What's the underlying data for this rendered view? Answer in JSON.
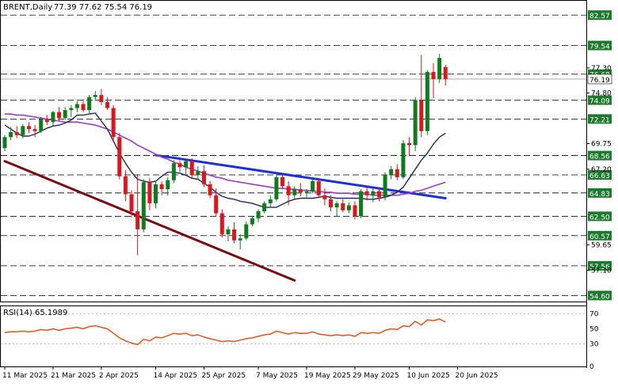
{
  "colors": {
    "up": "#0b7d1c",
    "down": "#e0141b",
    "ma_short": "#1f2a5a",
    "ma_long": "#9a3fc4",
    "trend_blue": "#1f2fd8",
    "trend_red": "#7a0a12",
    "rsi": "#e8531c",
    "grid": "#000000",
    "price_label_bg": "#1c7a2c"
  },
  "header": {
    "instrument": "BRENT,Daily",
    "ohlc": "77.39 77.62 75.54 76.19"
  },
  "price_levels": {
    "dashed_labeled": [
      "82.57",
      "79.54",
      "76.68",
      "74.09",
      "72.21",
      "68.56",
      "66.63",
      "64.83",
      "62.50",
      "60.57",
      "57.56",
      "54.60"
    ],
    "axis_ticks": [
      "77.30",
      "74.80",
      "69.75",
      "67.20",
      "59.65",
      "57.10"
    ],
    "current": "76.19"
  },
  "x_axis": {
    "labels": [
      "11 Mar 2025",
      "21 Mar 2025",
      "2 Apr 2025",
      "14 Apr 2025",
      "25 Apr 2025",
      "7 May 2025",
      "19 May 2025",
      "29 May 2025",
      "10 Jun 2025",
      "20 Jun 2025"
    ]
  },
  "rsi": {
    "label": "RSI(14) 65.1989",
    "ticks": [
      "70",
      "50",
      "30",
      "0"
    ],
    "levels": [
      70,
      30
    ]
  },
  "chart_data": {
    "type": "candlestick",
    "title": "BRENT,Daily",
    "ylim": [
      54.0,
      84.0
    ],
    "candles": [
      [
        69.3,
        70.6,
        69.0,
        70.4
      ],
      [
        70.4,
        71.4,
        70.1,
        70.9
      ],
      [
        70.9,
        71.5,
        70.3,
        70.6
      ],
      [
        70.6,
        71.7,
        70.3,
        71.5
      ],
      [
        71.5,
        71.9,
        70.8,
        71.2
      ],
      [
        71.2,
        71.6,
        70.4,
        71.0
      ],
      [
        71.0,
        72.4,
        70.8,
        72.2
      ],
      [
        72.2,
        72.6,
        71.6,
        71.9
      ],
      [
        71.9,
        73.0,
        71.5,
        72.9
      ],
      [
        72.9,
        73.4,
        72.0,
        72.3
      ],
      [
        72.3,
        73.4,
        72.1,
        73.1
      ],
      [
        73.1,
        73.6,
        72.4,
        73.3
      ],
      [
        73.3,
        74.0,
        72.9,
        73.7
      ],
      [
        73.7,
        74.2,
        72.9,
        73.1
      ],
      [
        73.1,
        74.6,
        72.8,
        74.4
      ],
      [
        74.4,
        75.0,
        74.0,
        74.6
      ],
      [
        74.6,
        75.2,
        73.6,
        73.9
      ],
      [
        73.9,
        74.4,
        73.1,
        73.3
      ],
      [
        73.3,
        73.6,
        70.1,
        70.4
      ],
      [
        70.4,
        70.8,
        66.2,
        66.5
      ],
      [
        66.5,
        67.1,
        64.0,
        64.7
      ],
      [
        64.7,
        65.1,
        62.4,
        63.0
      ],
      [
        63.0,
        66.7,
        58.6,
        61.2
      ],
      [
        61.2,
        66.2,
        60.9,
        65.9
      ],
      [
        65.9,
        66.3,
        63.1,
        63.8
      ],
      [
        63.8,
        66.0,
        63.3,
        65.7
      ],
      [
        65.7,
        66.0,
        64.6,
        65.2
      ],
      [
        65.2,
        66.4,
        64.6,
        66.1
      ],
      [
        66.1,
        68.1,
        65.8,
        67.8
      ],
      [
        67.8,
        68.1,
        66.9,
        67.4
      ],
      [
        67.4,
        68.2,
        66.7,
        68.0
      ],
      [
        68.0,
        68.3,
        66.2,
        66.6
      ],
      [
        66.6,
        67.5,
        66.1,
        67.0
      ],
      [
        67.0,
        67.6,
        65.4,
        65.7
      ],
      [
        65.7,
        66.0,
        64.3,
        64.6
      ],
      [
        64.6,
        65.3,
        62.5,
        62.8
      ],
      [
        62.8,
        63.2,
        60.4,
        60.7
      ],
      [
        60.7,
        61.5,
        60.0,
        61.2
      ],
      [
        61.2,
        61.9,
        59.8,
        60.1
      ],
      [
        60.1,
        60.7,
        59.2,
        60.3
      ],
      [
        60.3,
        62.0,
        60.1,
        61.7
      ],
      [
        61.7,
        62.5,
        61.5,
        62.3
      ],
      [
        62.3,
        63.2,
        61.9,
        63.0
      ],
      [
        63.0,
        64.0,
        62.8,
        63.8
      ],
      [
        63.8,
        64.6,
        63.4,
        64.2
      ],
      [
        64.2,
        66.6,
        64.0,
        66.4
      ],
      [
        66.4,
        66.7,
        65.2,
        65.5
      ],
      [
        65.5,
        66.0,
        63.6,
        64.6
      ],
      [
        64.6,
        65.5,
        64.2,
        65.2
      ],
      [
        65.2,
        65.8,
        64.5,
        64.9
      ],
      [
        64.9,
        65.2,
        64.3,
        65.0
      ],
      [
        65.0,
        66.2,
        64.8,
        66.0
      ],
      [
        66.0,
        66.2,
        64.4,
        64.6
      ],
      [
        64.6,
        65.3,
        63.6,
        64.2
      ],
      [
        64.2,
        64.6,
        63.0,
        63.4
      ],
      [
        63.4,
        64.0,
        62.5,
        63.8
      ],
      [
        63.8,
        64.2,
        62.9,
        63.1
      ],
      [
        63.1,
        63.9,
        62.8,
        63.6
      ],
      [
        63.6,
        64.0,
        62.2,
        62.5
      ],
      [
        62.5,
        65.2,
        62.3,
        65.0
      ],
      [
        65.0,
        65.4,
        64.1,
        64.6
      ],
      [
        64.6,
        65.3,
        63.9,
        65.0
      ],
      [
        65.0,
        65.4,
        64.0,
        64.4
      ],
      [
        64.4,
        66.9,
        64.1,
        66.6
      ],
      [
        66.6,
        67.5,
        66.2,
        67.2
      ],
      [
        67.2,
        67.7,
        66.1,
        66.4
      ],
      [
        66.4,
        70.1,
        66.2,
        69.8
      ],
      [
        69.8,
        70.4,
        68.5,
        69.6
      ],
      [
        69.6,
        74.4,
        69.0,
        74.1
      ],
      [
        74.1,
        78.6,
        70.4,
        71.0
      ],
      [
        71.0,
        77.1,
        70.6,
        76.9
      ],
      [
        76.9,
        77.8,
        74.3,
        76.2
      ],
      [
        76.2,
        78.7,
        75.8,
        78.3
      ],
      [
        77.39,
        77.62,
        75.54,
        76.19
      ]
    ],
    "x_labels": [
      "11 Mar 2025",
      "21 Mar 2025",
      "2 Apr 2025",
      "14 Apr 2025",
      "25 Apr 2025",
      "7 May 2025",
      "19 May 2025",
      "29 May 2025",
      "10 Jun 2025",
      "20 Jun 2025"
    ],
    "ma_short": [
      71.6,
      71.2,
      70.8,
      70.5,
      70.5,
      70.7,
      71.0,
      71.3,
      71.5,
      71.6,
      71.8,
      72.1,
      72.6,
      72.6,
      72.7,
      72.8,
      72.0,
      71.2,
      70.0,
      68.8,
      67.8,
      66.9,
      66.2,
      66.0,
      65.9,
      66.0,
      66.5,
      66.9,
      66.9,
      66.8,
      66.6,
      66.3,
      66.2,
      65.8,
      65.4,
      64.9,
      64.5,
      64.3,
      64.2,
      64.0,
      63.9,
      63.8,
      63.6,
      63.4,
      63.4,
      63.4,
      63.7,
      64.0,
      64.2,
      64.3,
      64.3,
      64.3,
      64.4,
      64.5,
      64.4,
      64.3,
      64.3,
      64.3,
      64.3,
      64.3,
      64.2,
      64.2,
      64.3,
      64.4,
      64.6,
      64.9,
      65.4,
      66.3,
      67.2,
      68.1,
      68.8,
      69.7,
      70.4,
      70.8
    ],
    "ma_long": [
      72.7,
      72.7,
      72.6,
      72.6,
      72.5,
      72.4,
      72.3,
      72.2,
      72.1,
      72.0,
      71.9,
      71.9,
      71.9,
      71.8,
      71.7,
      71.6,
      71.4,
      71.2,
      70.9,
      70.6,
      70.3,
      70.0,
      69.6,
      69.3,
      69.0,
      68.7,
      68.4,
      68.2,
      67.9,
      67.7,
      67.4,
      67.2,
      67.0,
      66.8,
      66.6,
      66.4,
      66.3,
      66.1,
      66.0,
      65.9,
      65.8,
      65.7,
      65.6,
      65.5,
      65.4,
      65.3,
      65.3,
      65.2,
      65.2,
      65.1,
      65.1,
      65.0,
      65.0,
      64.9,
      64.9,
      64.8,
      64.8,
      64.8,
      64.7,
      64.7,
      64.7,
      64.6,
      64.6,
      64.6,
      64.6,
      64.6,
      64.7,
      64.8,
      65.0,
      65.1,
      65.3,
      65.5,
      65.7,
      65.9
    ],
    "trendlines": [
      {
        "color": "trend_blue",
        "from": [
          25,
          68.6
        ],
        "to": [
          73,
          64.3
        ]
      },
      {
        "color": "trend_red",
        "from": [
          0,
          68.0
        ],
        "to": [
          48,
          56.1
        ]
      }
    ],
    "rsi_values": [
      45,
      46,
      46,
      47,
      46,
      47,
      49,
      48,
      50,
      48,
      50,
      51,
      52,
      50,
      53,
      54,
      52,
      50,
      44,
      38,
      34,
      31,
      29,
      36,
      34,
      39,
      38,
      41,
      44,
      43,
      44,
      41,
      42,
      39,
      37,
      35,
      33,
      34,
      33,
      35,
      37,
      38,
      40,
      42,
      43,
      47,
      45,
      43,
      45,
      44,
      44,
      46,
      43,
      42,
      41,
      42,
      41,
      42,
      40,
      45,
      44,
      45,
      44,
      48,
      50,
      49,
      54,
      53,
      60,
      55,
      62,
      61,
      63,
      59
    ],
    "rsi_ylim": [
      0,
      80
    ]
  }
}
